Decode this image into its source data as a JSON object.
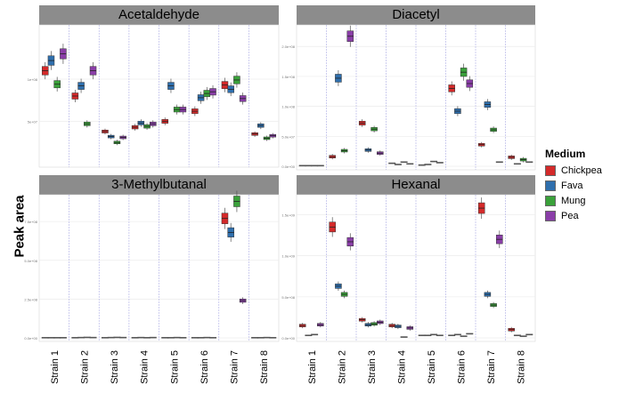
{
  "y_axis_title": "Peak area",
  "legend": {
    "title": "Medium",
    "items": [
      {
        "label": "Chickpea",
        "color": "#d42a2a"
      },
      {
        "label": "Fava",
        "color": "#2f6fad"
      },
      {
        "label": "Mung",
        "color": "#3aa13a"
      },
      {
        "label": "Pea",
        "color": "#8a3ea8"
      }
    ]
  },
  "chart_data": [
    {
      "type": "box",
      "title": "Acetaldehyde",
      "categories": [
        "Strain 1",
        "Strain 2",
        "Strain 3",
        "Strain 4",
        "Strain 5",
        "Strain 6",
        "Strain 7",
        "Strain 8"
      ],
      "yticks": [
        "5e+07",
        "1e+08"
      ],
      "ylim": [
        0,
        160000000.0
      ],
      "series": [
        {
          "name": "Chickpea",
          "values": [
            110000000.0,
            80000000.0,
            38000000.0,
            43000000.0,
            50000000.0,
            62000000.0,
            93000000.0,
            35000000.0
          ]
        },
        {
          "name": "Fava",
          "values": [
            122000000.0,
            92000000.0,
            32000000.0,
            48000000.0,
            92000000.0,
            78000000.0,
            88000000.0,
            45000000.0
          ]
        },
        {
          "name": "Mung",
          "values": [
            94000000.0,
            47000000.0,
            25000000.0,
            44000000.0,
            64000000.0,
            83000000.0,
            99000000.0,
            30000000.0
          ]
        },
        {
          "name": "Pea",
          "values": [
            130000000.0,
            110000000.0,
            31000000.0,
            47000000.0,
            64000000.0,
            85000000.0,
            77000000.0,
            33000000.0
          ]
        }
      ]
    },
    {
      "type": "box",
      "title": "Diacetyl",
      "categories": [
        "Strain 1",
        "Strain 2",
        "Strain 3",
        "Strain 4",
        "Strain 5",
        "Strain 6",
        "Strain 7",
        "Strain 8"
      ],
      "yticks": [
        "0.0e+00",
        "5.0e+07",
        "1.0e+08",
        "1.5e+08",
        "2.0e+08"
      ],
      "ylim": [
        0,
        230000000.0
      ],
      "series": [
        {
          "name": "Chickpea",
          "values": [
            1000000.0,
            16000000.0,
            72000000.0,
            5000000.0,
            2000000.0,
            130000000.0,
            36000000.0,
            15000000.0
          ]
        },
        {
          "name": "Fava",
          "values": [
            1000000.0,
            147000000.0,
            27000000.0,
            3000000.0,
            3000000.0,
            92000000.0,
            103000000.0,
            4000000.0
          ]
        },
        {
          "name": "Mung",
          "values": [
            1000000.0,
            26000000.0,
            62000000.0,
            7000000.0,
            8000000.0,
            157000000.0,
            61000000.0,
            11000000.0
          ]
        },
        {
          "name": "Pea",
          "values": [
            1000000.0,
            217000000.0,
            22000000.0,
            4000000.0,
            6000000.0,
            138000000.0,
            7000000.0,
            7000000.0
          ]
        }
      ]
    },
    {
      "type": "box",
      "title": "3-Methylbutanal",
      "categories": [
        "Strain 1",
        "Strain 2",
        "Strain 3",
        "Strain 4",
        "Strain 5",
        "Strain 6",
        "Strain 7",
        "Strain 8"
      ],
      "yticks": [
        "0.0e+00",
        "2.5e+08",
        "5.0e+08",
        "7.5e+08"
      ],
      "ylim": [
        0,
        900000000.0
      ],
      "series": [
        {
          "name": "Chickpea",
          "values": [
            1000000.0,
            1000000.0,
            1000000.0,
            1000000.0,
            1000000.0,
            1000000.0,
            770000000.0,
            1000000.0
          ]
        },
        {
          "name": "Fava",
          "values": [
            1000000.0,
            2000000.0,
            2000000.0,
            2000000.0,
            1000000.0,
            1000000.0,
            680000000.0,
            1000000.0
          ]
        },
        {
          "name": "Mung",
          "values": [
            1000000.0,
            3000000.0,
            3000000.0,
            1000000.0,
            2000000.0,
            2000000.0,
            880000000.0,
            2000000.0
          ]
        },
        {
          "name": "Pea",
          "values": [
            1000000.0,
            2000000.0,
            2000000.0,
            2000000.0,
            1000000.0,
            1000000.0,
            240000000.0,
            1000000.0
          ]
        }
      ]
    },
    {
      "type": "box",
      "title": "Hexanal",
      "categories": [
        "Strain 1",
        "Strain 2",
        "Strain 3",
        "Strain 4",
        "Strain 5",
        "Strain 6",
        "Strain 7",
        "Strain 8"
      ],
      "yticks": [
        "0.0e+00",
        "5.0e+08",
        "1.0e+09",
        "1.5e+09"
      ],
      "ylim": [
        0,
        1700000000.0
      ],
      "series": [
        {
          "name": "Chickpea",
          "values": [
            150000000.0,
            1350000000.0,
            220000000.0,
            150000000.0,
            30000000.0,
            30000000.0,
            1580000000.0,
            100000000.0
          ]
        },
        {
          "name": "Fava",
          "values": [
            30000000.0,
            630000000.0,
            160000000.0,
            140000000.0,
            30000000.0,
            40000000.0,
            530000000.0,
            30000000.0
          ]
        },
        {
          "name": "Mung",
          "values": [
            40000000.0,
            530000000.0,
            170000000.0,
            10000000.0,
            40000000.0,
            20000000.0,
            400000000.0,
            20000000.0
          ]
        },
        {
          "name": "Pea",
          "values": [
            160000000.0,
            1170000000.0,
            190000000.0,
            120000000.0,
            30000000.0,
            50000000.0,
            1200000000.0,
            40000000.0
          ]
        }
      ]
    }
  ]
}
